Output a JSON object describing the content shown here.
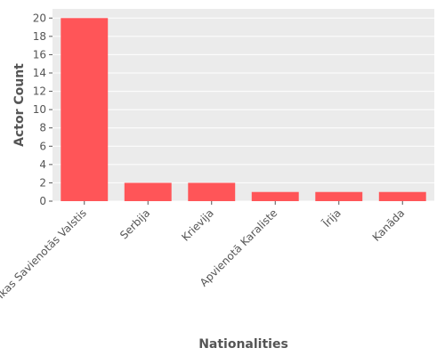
{
  "chart_data": {
    "type": "bar",
    "categories": [
      "Amerikas Savienotās Valstis",
      "Serbija",
      "Krievija",
      "Apvienotā Karaliste",
      "Īrija",
      "Kanāda"
    ],
    "values": [
      20,
      2,
      2,
      1,
      1,
      1
    ],
    "xlabel": "Nationalities",
    "ylabel": "Actor Count",
    "ylim": [
      0,
      21
    ],
    "yticks": [
      0,
      2,
      4,
      6,
      8,
      10,
      12,
      14,
      16,
      18,
      20
    ],
    "grid": true,
    "bar_color": "#ff5558",
    "plot_background": "#ebebeb",
    "grid_color": "#ffffff"
  }
}
